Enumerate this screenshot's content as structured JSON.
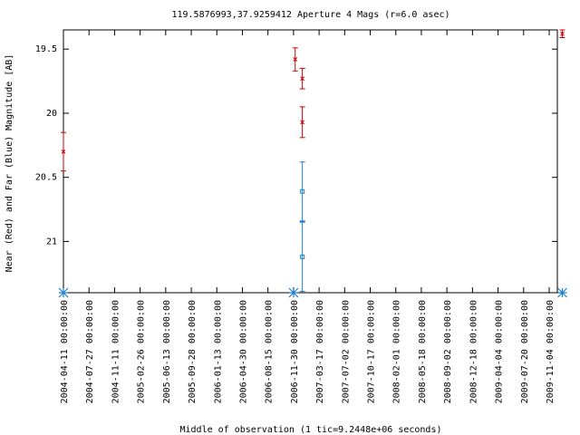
{
  "chart_data": {
    "type": "scatter",
    "title": "119.5876993,37.9259412   Aperture 4 Mags (r=6.0 asec)",
    "xlabel": "Middle of observation (1 tic=9.2448e+06 seconds)",
    "ylabel": "Near (Red) and Far (Blue) Magnitude [AB]",
    "y_inverted": true,
    "ylim": [
      21.4,
      19.35
    ],
    "yticks": [
      "19.5",
      "20",
      "20.5",
      "21"
    ],
    "xticks": [
      "2004-04-11 00:00:00",
      "2004-07-27 00:00:00",
      "2004-11-11 00:00:00",
      "2005-02-26 00:00:00",
      "2005-06-13 00:00:00",
      "2005-09-28 00:00:00",
      "2006-01-13 00:00:00",
      "2006-04-30 00:00:00",
      "2006-08-15 00:00:00",
      "2006-11-30 00:00:00",
      "2007-03-17 00:00:00",
      "2007-07-02 00:00:00",
      "2007-10-17 00:00:00",
      "2008-02-01 00:00:00",
      "2008-05-18 00:00:00",
      "2008-09-02 00:00:00",
      "2008-12-18 00:00:00",
      "2009-04-04 00:00:00",
      "2009-07-20 00:00:00",
      "2009-11-04 00:00:00"
    ],
    "grid": false,
    "series": [
      {
        "name": "Near",
        "color": "#cc0000",
        "points": [
          {
            "x": "2004-04-11",
            "y": 20.3,
            "err": 0.15
          },
          {
            "x": "2006-12-07",
            "y": 19.58,
            "err": 0.09
          },
          {
            "x": "2007-01-06",
            "y": 19.73,
            "err": 0.08
          },
          {
            "x": "2007-01-06",
            "y": 20.07,
            "err": 0.12
          },
          {
            "x": "2009-12-29",
            "y": 19.38,
            "err": 0.03
          }
        ]
      },
      {
        "name": "Far",
        "color": "#1e7fd0",
        "points": [
          {
            "x": "2007-01-06",
            "y": 20.61,
            "err": 0.23
          },
          {
            "x": "2007-01-06",
            "y": 21.12,
            "err": 0.27
          }
        ]
      }
    ],
    "limit_markers": [
      {
        "x": "2004-04-11",
        "y": "bottom"
      },
      {
        "x": "2006-11-30",
        "y": "bottom"
      },
      {
        "x": "2009-12-29",
        "y": "bottom"
      }
    ]
  }
}
